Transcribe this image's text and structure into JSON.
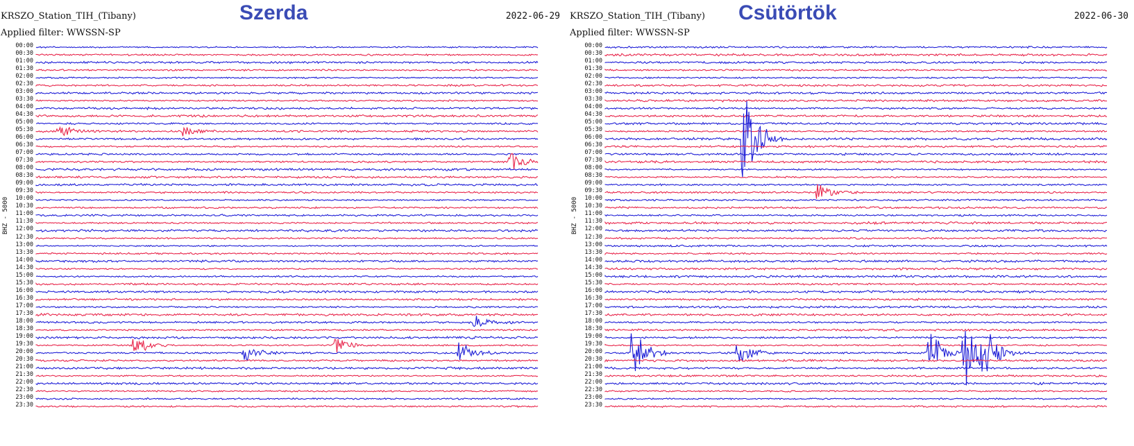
{
  "chart_data": [
    {
      "type": "line",
      "title": "Szerda",
      "station": "KRSZO_Station_TIH_(Tibany)",
      "filter": "Applied filter: WWSSN-SP",
      "date": "2022-06-29",
      "ylabel": "BHZ - 5000",
      "y_ticks": [
        "00:00",
        "00:30",
        "01:00",
        "01:30",
        "02:00",
        "02:30",
        "03:00",
        "03:30",
        "04:00",
        "04:30",
        "05:00",
        "05:30",
        "06:00",
        "06:30",
        "07:00",
        "07:30",
        "08:00",
        "08:30",
        "09:00",
        "09:30",
        "10:00",
        "10:30",
        "11:00",
        "11:30",
        "12:00",
        "12:30",
        "13:00",
        "13:30",
        "14:00",
        "14:30",
        "15:00",
        "15:30",
        "16:00",
        "16:30",
        "17:00",
        "17:30",
        "18:00",
        "18:30",
        "19:00",
        "19:30",
        "20:00",
        "20:30",
        "21:00",
        "21:30",
        "22:00",
        "22:30",
        "23:00",
        "23:30"
      ],
      "series_colors": [
        "#1c1cd6",
        "#e8244a"
      ],
      "events": [
        {
          "row": 11,
          "x": 0.05,
          "amp": 0.6
        },
        {
          "row": 11,
          "x": 0.3,
          "amp": 0.55
        },
        {
          "row": 15,
          "x": 0.95,
          "amp": 0.9
        },
        {
          "row": 36,
          "x": 0.88,
          "amp": 0.8
        },
        {
          "row": 39,
          "x": 0.6,
          "amp": 1.0
        },
        {
          "row": 39,
          "x": 0.2,
          "amp": 1.0
        },
        {
          "row": 40,
          "x": 0.85,
          "amp": 1.1
        },
        {
          "row": 40,
          "x": 0.42,
          "amp": 1.0
        }
      ]
    },
    {
      "type": "line",
      "title": "Csütörtök",
      "station": "KRSZO_Station_TIH_(Tibany)",
      "filter": "Applied filter: WWSSN-SP",
      "date": "2022-06-30",
      "ylabel": "BHZ - 5000",
      "y_ticks": [
        "00:00",
        "00:30",
        "01:00",
        "01:30",
        "02:00",
        "02:30",
        "03:00",
        "03:30",
        "04:00",
        "04:30",
        "05:00",
        "05:30",
        "06:00",
        "06:30",
        "07:00",
        "07:30",
        "08:00",
        "08:30",
        "09:00",
        "09:30",
        "10:00",
        "10:30",
        "11:00",
        "11:30",
        "12:00",
        "12:30",
        "13:00",
        "13:30",
        "14:00",
        "14:30",
        "15:00",
        "15:30",
        "16:00",
        "16:30",
        "17:00",
        "17:30",
        "18:00",
        "18:30",
        "19:00",
        "19:30",
        "20:00",
        "20:30",
        "21:00",
        "21:30",
        "22:00",
        "22:30",
        "23:00",
        "23:30"
      ],
      "series_colors": [
        "#1c1cd6",
        "#e8244a"
      ],
      "events": [
        {
          "row": 12,
          "x": 0.28,
          "amp": 6.0
        },
        {
          "row": 19,
          "x": 0.43,
          "amp": 0.8
        },
        {
          "row": 40,
          "x": 0.06,
          "amp": 2.6
        },
        {
          "row": 40,
          "x": 0.65,
          "amp": 2.2
        },
        {
          "row": 40,
          "x": 0.72,
          "amp": 3.5
        },
        {
          "row": 40,
          "x": 0.76,
          "amp": 1.6
        },
        {
          "row": 40,
          "x": 0.75,
          "amp": 1.2
        },
        {
          "row": 40,
          "x": 0.27,
          "amp": 1.2
        }
      ]
    }
  ]
}
